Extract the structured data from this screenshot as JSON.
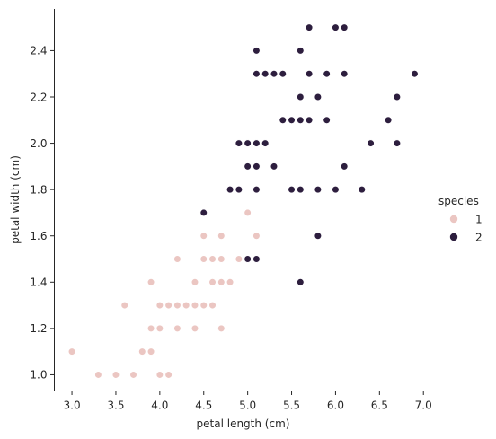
{
  "chart_data": {
    "type": "scatter",
    "title": "",
    "xlabel": "petal length (cm)",
    "ylabel": "petal width (cm)",
    "xlim": [
      2.8,
      7.1
    ],
    "ylim": [
      0.93,
      2.58
    ],
    "xticks": [
      "3.0",
      "3.5",
      "4.0",
      "4.5",
      "5.0",
      "5.5",
      "6.0",
      "6.5",
      "7.0"
    ],
    "yticks": [
      "1.0",
      "1.2",
      "1.4",
      "1.6",
      "1.8",
      "2.0",
      "2.2",
      "2.4"
    ],
    "grid": false,
    "legend": {
      "title": "species",
      "placement": "right"
    },
    "series": [
      {
        "name": "1",
        "color": "#ebc6c2",
        "points": [
          [
            3.0,
            1.1
          ],
          [
            3.3,
            1.0
          ],
          [
            3.5,
            1.0
          ],
          [
            3.7,
            1.0
          ],
          [
            4.0,
            1.0
          ],
          [
            4.1,
            1.0
          ],
          [
            3.8,
            1.1
          ],
          [
            3.9,
            1.1
          ],
          [
            3.9,
            1.2
          ],
          [
            4.0,
            1.2
          ],
          [
            4.2,
            1.2
          ],
          [
            4.4,
            1.2
          ],
          [
            4.7,
            1.2
          ],
          [
            3.6,
            1.3
          ],
          [
            4.0,
            1.3
          ],
          [
            4.1,
            1.3
          ],
          [
            4.2,
            1.3
          ],
          [
            4.3,
            1.3
          ],
          [
            4.4,
            1.3
          ],
          [
            4.5,
            1.3
          ],
          [
            4.6,
            1.3
          ],
          [
            3.9,
            1.4
          ],
          [
            4.4,
            1.4
          ],
          [
            4.6,
            1.4
          ],
          [
            4.7,
            1.4
          ],
          [
            4.8,
            1.4
          ],
          [
            4.2,
            1.5
          ],
          [
            4.5,
            1.5
          ],
          [
            4.6,
            1.5
          ],
          [
            4.7,
            1.5
          ],
          [
            4.9,
            1.5
          ],
          [
            4.5,
            1.6
          ],
          [
            4.7,
            1.6
          ],
          [
            5.1,
            1.6
          ],
          [
            5.0,
            1.7
          ]
        ]
      },
      {
        "name": "2",
        "color": "#2d1e3e",
        "points": [
          [
            5.6,
            1.4
          ],
          [
            5.0,
            1.5
          ],
          [
            5.1,
            1.5
          ],
          [
            5.8,
            1.6
          ],
          [
            4.5,
            1.7
          ],
          [
            4.8,
            1.8
          ],
          [
            4.9,
            1.8
          ],
          [
            5.1,
            1.8
          ],
          [
            5.5,
            1.8
          ],
          [
            5.6,
            1.8
          ],
          [
            5.8,
            1.8
          ],
          [
            6.0,
            1.8
          ],
          [
            6.3,
            1.8
          ],
          [
            5.0,
            1.9
          ],
          [
            5.1,
            1.9
          ],
          [
            5.3,
            1.9
          ],
          [
            6.1,
            1.9
          ],
          [
            4.9,
            2.0
          ],
          [
            5.0,
            2.0
          ],
          [
            5.1,
            2.0
          ],
          [
            5.2,
            2.0
          ],
          [
            6.4,
            2.0
          ],
          [
            6.7,
            2.0
          ],
          [
            5.4,
            2.1
          ],
          [
            5.5,
            2.1
          ],
          [
            5.6,
            2.1
          ],
          [
            5.7,
            2.1
          ],
          [
            5.9,
            2.1
          ],
          [
            6.6,
            2.1
          ],
          [
            5.6,
            2.2
          ],
          [
            5.8,
            2.2
          ],
          [
            6.7,
            2.2
          ],
          [
            5.1,
            2.3
          ],
          [
            5.2,
            2.3
          ],
          [
            5.3,
            2.3
          ],
          [
            5.4,
            2.3
          ],
          [
            5.7,
            2.3
          ],
          [
            5.9,
            2.3
          ],
          [
            6.1,
            2.3
          ],
          [
            6.9,
            2.3
          ],
          [
            5.1,
            2.4
          ],
          [
            5.6,
            2.4
          ],
          [
            5.7,
            2.5
          ],
          [
            6.0,
            2.5
          ],
          [
            6.1,
            2.5
          ]
        ]
      }
    ]
  }
}
